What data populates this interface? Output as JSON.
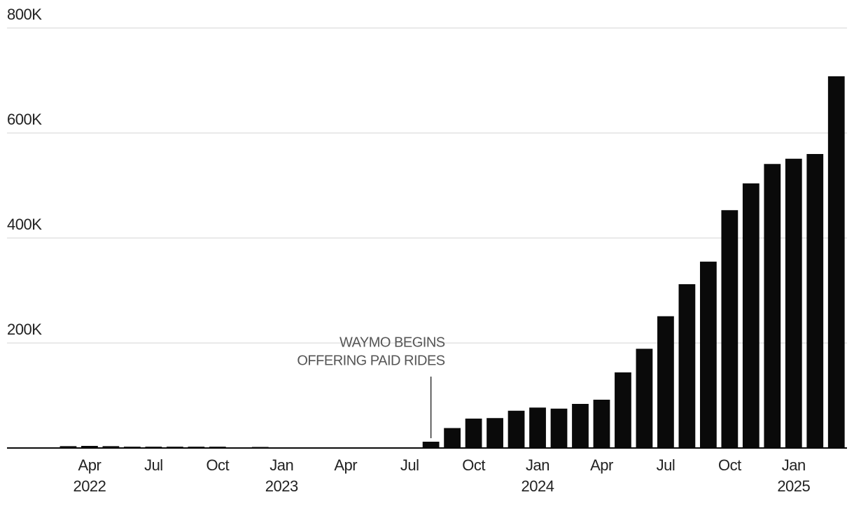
{
  "chart_data": {
    "type": "bar",
    "color": "#0a0a0a",
    "categories": [
      null,
      null,
      null,
      "Apr",
      null,
      null,
      "Jul",
      null,
      null,
      "Oct",
      null,
      null,
      "Jan",
      null,
      null,
      "Apr",
      null,
      null,
      "Jul",
      null,
      null,
      "Oct",
      null,
      null,
      "Jan",
      null,
      null,
      "Apr",
      null,
      null,
      "Jul",
      null,
      null,
      "Oct",
      null,
      null,
      "Jan",
      null,
      null
    ],
    "category_years": [
      null,
      null,
      null,
      2022,
      null,
      null,
      null,
      null,
      null,
      null,
      null,
      null,
      2023,
      null,
      null,
      null,
      null,
      null,
      null,
      null,
      null,
      null,
      null,
      null,
      2024,
      null,
      null,
      null,
      null,
      null,
      null,
      null,
      null,
      null,
      null,
      null,
      2025,
      null,
      null
    ],
    "values": [
      0,
      0,
      3500,
      4000,
      3500,
      2500,
      2500,
      2500,
      2500,
      2500,
      1000,
      2000,
      1000,
      1000,
      1000,
      1000,
      1000,
      1000,
      1000,
      12000,
      38000,
      56000,
      57000,
      71000,
      77000,
      75000,
      84000,
      92000,
      144000,
      189000,
      251000,
      312000,
      355000,
      453000,
      504000,
      541000,
      551000,
      560000,
      708000
    ],
    "ylim": [
      0,
      800000
    ],
    "yticks": [
      {
        "value": 200000,
        "label": "200K"
      },
      {
        "value": 400000,
        "label": "400K"
      },
      {
        "value": 600000,
        "label": "600K"
      },
      {
        "value": 800000,
        "label": "800K"
      }
    ],
    "grid": true,
    "annotation": {
      "lines": [
        "WAYMO BEGINS",
        "OFFERING PAID RIDES"
      ]
    }
  }
}
